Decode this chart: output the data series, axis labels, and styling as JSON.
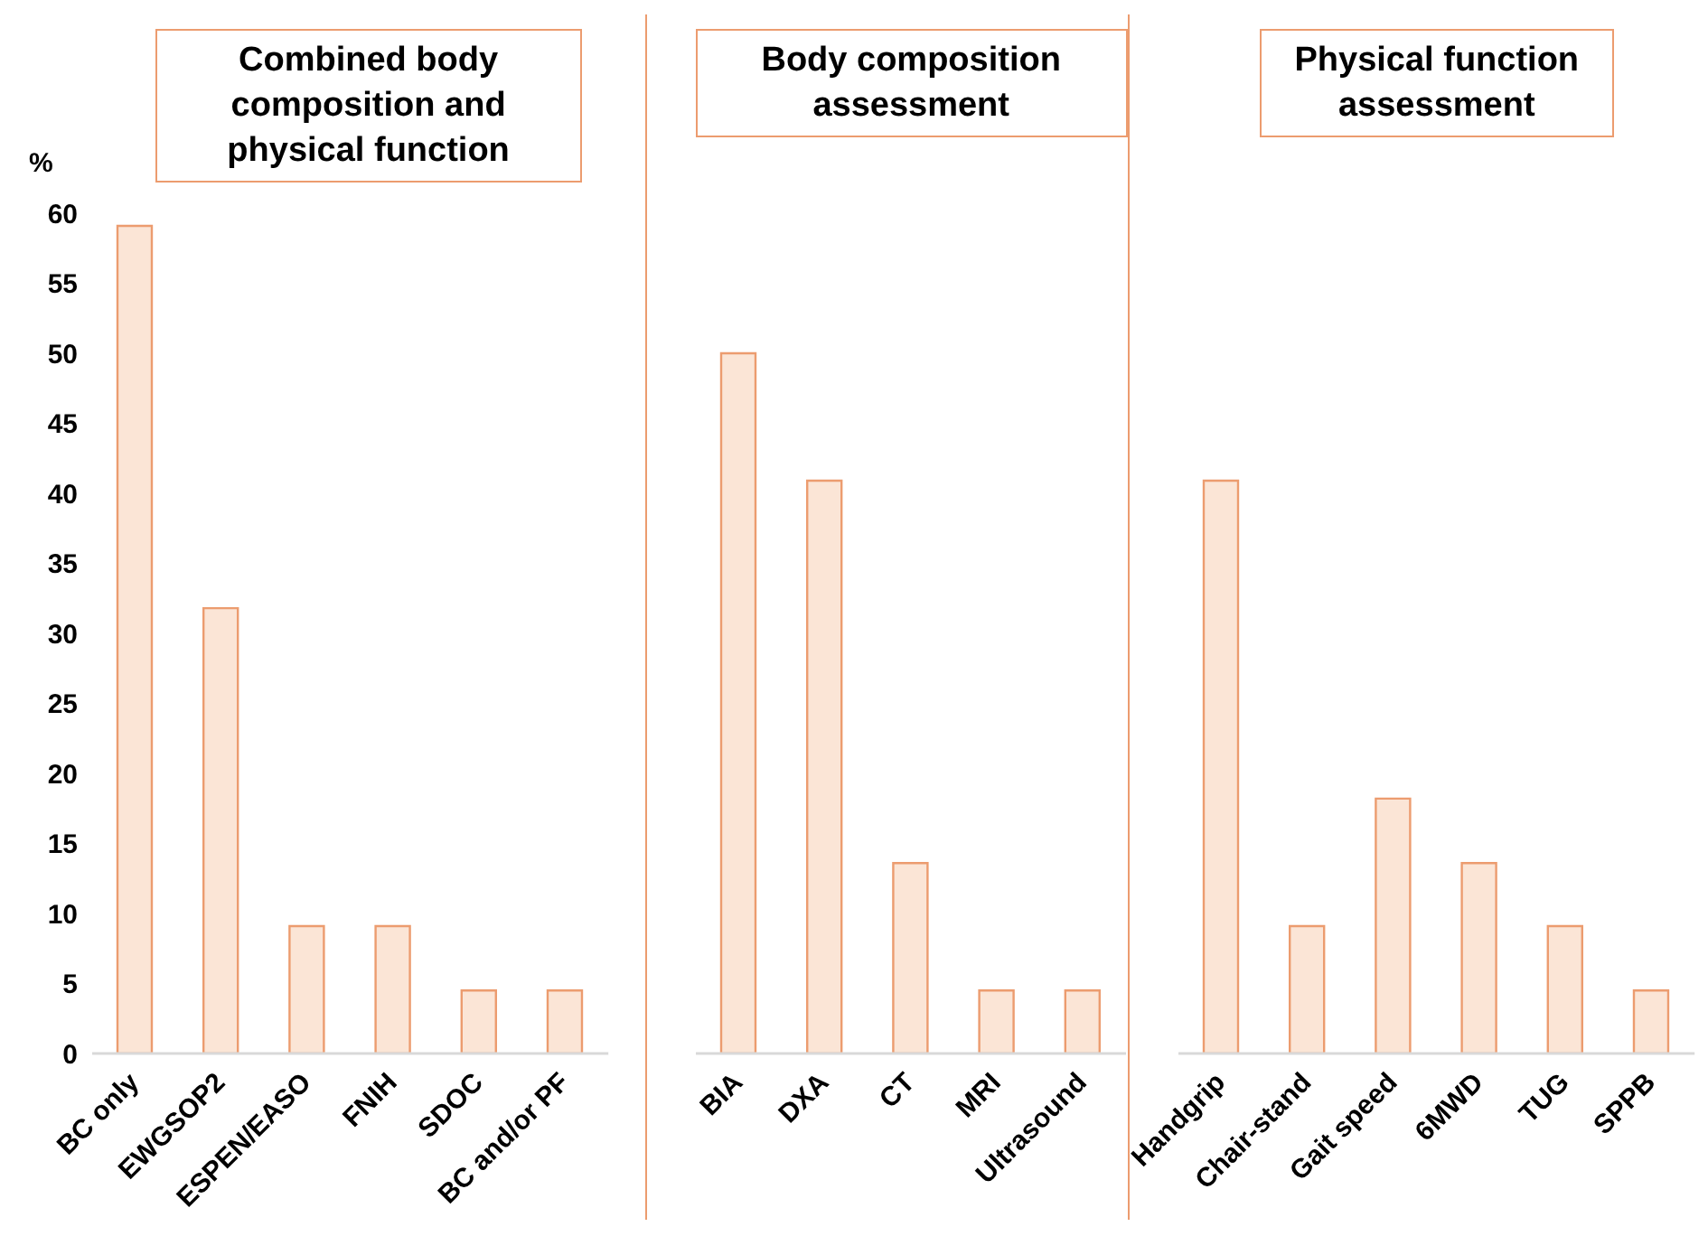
{
  "chart_data": [
    {
      "type": "bar",
      "title": "Combined body composition and physical function",
      "ylabel": "%",
      "categories": [
        "BC only",
        "EWGSOP2",
        "ESPEN/EASO",
        "FNIH",
        "SDOC",
        "BC and/or PF"
      ],
      "values": [
        59.1,
        31.8,
        9.1,
        9.1,
        4.5,
        4.5
      ],
      "color": "#fbe5d6",
      "ylim": [
        0,
        60
      ],
      "yticks": [
        0,
        5,
        10,
        15,
        20,
        25,
        30,
        35,
        40,
        45,
        50,
        55,
        60
      ],
      "grid": false,
      "legend": false
    },
    {
      "type": "bar",
      "title": "Body composition assessment",
      "categories": [
        "BIA",
        "DXA",
        "CT",
        "MRI",
        "Ultrasound"
      ],
      "values": [
        50,
        40.9,
        13.6,
        4.5,
        4.5
      ],
      "color": "#fbe5d6",
      "ylim": [
        0,
        60
      ],
      "yticks": [
        0,
        5,
        10,
        15,
        20,
        25,
        30,
        35,
        40,
        45,
        50,
        55,
        60
      ],
      "tick_labels": "x",
      "grid": false,
      "legend": false
    },
    {
      "type": "bar",
      "title": "Physical function assessment",
      "categories": [
        "Handgrip",
        "Chair-stand",
        "Gait speed",
        "6MWD",
        "TUG",
        "SPPB"
      ],
      "values": [
        40.9,
        9.1,
        18.2,
        13.6,
        9.1,
        4.5
      ],
      "color": "#fbe5d6",
      "ylim": [
        0,
        60
      ],
      "yticks": [
        0,
        5,
        10,
        15,
        20,
        25,
        30,
        35,
        40,
        45,
        50,
        55,
        60
      ],
      "tick_labels": "x",
      "grid": false,
      "legend": false
    }
  ]
}
